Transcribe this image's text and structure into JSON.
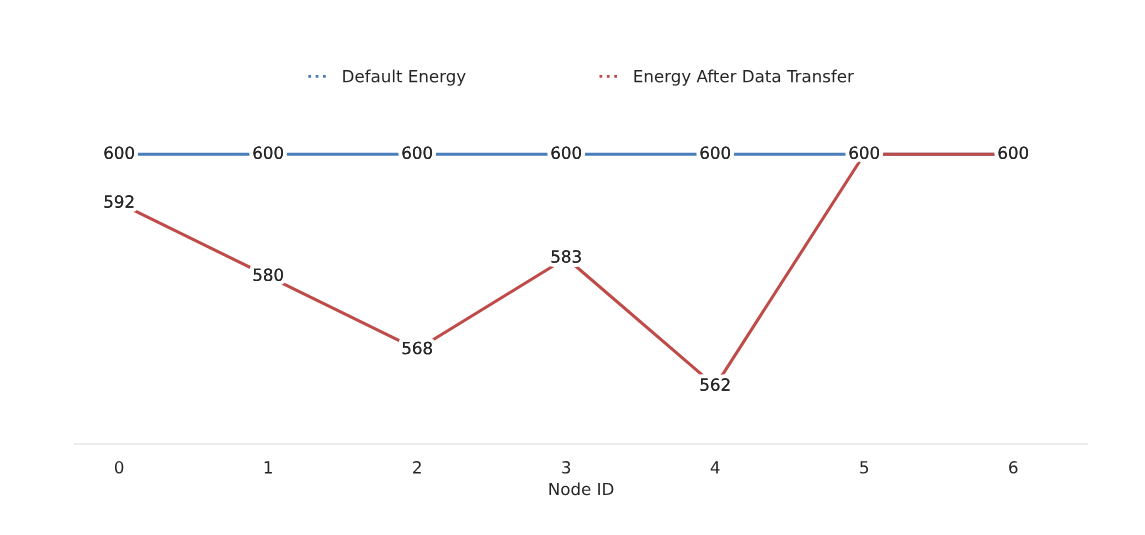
{
  "chart_data": {
    "type": "line",
    "xlabel": "Node ID",
    "categories": [
      "0",
      "1",
      "2",
      "3",
      "4",
      "5",
      "6"
    ],
    "series": [
      {
        "name": "Default Energy",
        "color": "#4a7ebb",
        "values": [
          600,
          600,
          600,
          600,
          600,
          600,
          600
        ],
        "value_labels": [
          "600",
          "600",
          "600",
          "600",
          "600",
          null,
          null
        ]
      },
      {
        "name": "Energy After Data Transfer",
        "color": "#be4b48",
        "values": [
          592,
          580,
          568,
          583,
          562,
          600,
          600
        ],
        "value_labels": [
          "592",
          "580",
          "568",
          "583",
          "562",
          "600",
          "600"
        ]
      }
    ],
    "tick_labels": "x",
    "legend": "top",
    "grid": false,
    "line_style": "solid"
  }
}
